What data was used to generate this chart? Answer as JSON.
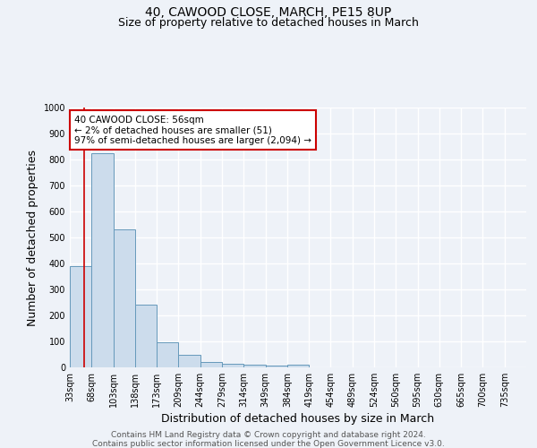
{
  "title": "40, CAWOOD CLOSE, MARCH, PE15 8UP",
  "subtitle": "Size of property relative to detached houses in March",
  "xlabel": "Distribution of detached houses by size in March",
  "ylabel": "Number of detached properties",
  "bins": [
    "33sqm",
    "68sqm",
    "103sqm",
    "138sqm",
    "173sqm",
    "209sqm",
    "244sqm",
    "279sqm",
    "314sqm",
    "349sqm",
    "384sqm",
    "419sqm",
    "454sqm",
    "489sqm",
    "524sqm",
    "560sqm",
    "595sqm",
    "630sqm",
    "665sqm",
    "700sqm",
    "735sqm"
  ],
  "values": [
    390,
    825,
    530,
    243,
    95,
    50,
    20,
    15,
    10,
    8,
    10,
    0,
    0,
    0,
    0,
    0,
    0,
    0,
    0,
    0,
    0
  ],
  "bar_color": "#ccdcec",
  "bar_edge_color": "#6699bb",
  "red_line_color": "#cc0000",
  "red_line_x": 0.657,
  "annotation_text": "40 CAWOOD CLOSE: 56sqm\n← 2% of detached houses are smaller (51)\n97% of semi-detached houses are larger (2,094) →",
  "annotation_box_color": "#ffffff",
  "annotation_box_edge": "#cc0000",
  "ylim": [
    0,
    1000
  ],
  "footer1": "Contains HM Land Registry data © Crown copyright and database right 2024.",
  "footer2": "Contains public sector information licensed under the Open Government Licence v3.0.",
  "background_color": "#eef2f8",
  "grid_color": "#ffffff",
  "title_fontsize": 10,
  "subtitle_fontsize": 9,
  "axis_label_fontsize": 9,
  "tick_fontsize": 7,
  "annotation_fontsize": 7.5,
  "footer_fontsize": 6.5
}
